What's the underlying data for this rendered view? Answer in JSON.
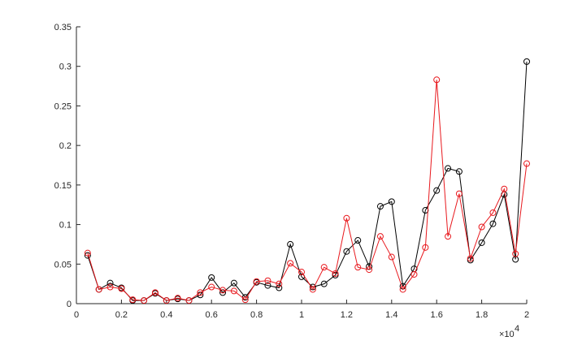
{
  "chart_data": {
    "type": "line",
    "title": "",
    "xlabel": "",
    "ylabel": "",
    "xlim": [
      0,
      20000
    ],
    "ylim": [
      0,
      0.35
    ],
    "x_exponent_label": "×10",
    "x_exponent_power": "4",
    "x_ticks": [
      0,
      2000,
      4000,
      6000,
      8000,
      10000,
      12000,
      14000,
      16000,
      18000,
      20000
    ],
    "x_tick_labels": [
      "0",
      "0.2",
      "0.4",
      "0.6",
      "0.8",
      "1",
      "1.2",
      "1.4",
      "1.6",
      "1.8",
      "2"
    ],
    "y_ticks": [
      0,
      0.05,
      0.1,
      0.15,
      0.2,
      0.25,
      0.3,
      0.35
    ],
    "y_tick_labels": [
      "0",
      "0.05",
      "0.1",
      "0.15",
      "0.2",
      "0.25",
      "0.3",
      "0.35"
    ],
    "grid": false,
    "legend": "none",
    "x": [
      500,
      1000,
      1500,
      2000,
      2500,
      3000,
      3500,
      4000,
      4500,
      5000,
      5500,
      6000,
      6500,
      7000,
      7500,
      8000,
      8500,
      9000,
      9500,
      10000,
      10500,
      11000,
      11500,
      12000,
      12500,
      13000,
      13500,
      14000,
      14500,
      15000,
      15500,
      16000,
      16500,
      17000,
      17500,
      18000,
      18500,
      19000,
      19500,
      20000
    ],
    "series": [
      {
        "color": "#000000",
        "marker": "circle",
        "values": [
          0.061,
          0.018,
          0.026,
          0.02,
          0.004,
          0.004,
          0.013,
          0.004,
          0.006,
          0.004,
          0.011,
          0.033,
          0.014,
          0.026,
          0.008,
          0.027,
          0.023,
          0.02,
          0.075,
          0.034,
          0.021,
          0.025,
          0.036,
          0.066,
          0.08,
          0.047,
          0.123,
          0.129,
          0.022,
          0.044,
          0.118,
          0.143,
          0.171,
          0.167,
          0.055,
          0.077,
          0.101,
          0.138,
          0.056,
          0.306
        ]
      },
      {
        "color": "#e8191e",
        "marker": "circle",
        "values": [
          0.064,
          0.018,
          0.021,
          0.019,
          0.005,
          0.004,
          0.014,
          0.004,
          0.007,
          0.004,
          0.014,
          0.021,
          0.017,
          0.016,
          0.005,
          0.028,
          0.029,
          0.025,
          0.051,
          0.04,
          0.018,
          0.046,
          0.038,
          0.108,
          0.046,
          0.043,
          0.085,
          0.059,
          0.018,
          0.037,
          0.071,
          0.283,
          0.085,
          0.139,
          0.057,
          0.097,
          0.115,
          0.145,
          0.063,
          0.177
        ]
      }
    ]
  }
}
